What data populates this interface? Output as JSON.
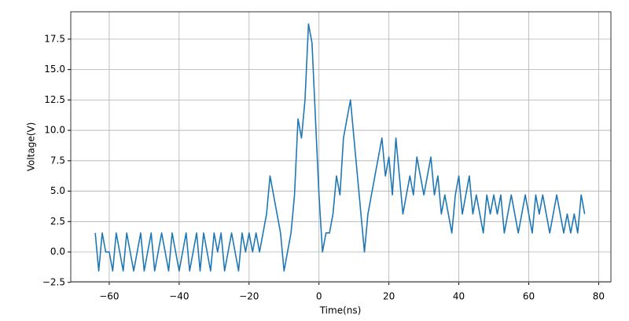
{
  "chart_data": {
    "type": "line",
    "x_label": "Time(ns)",
    "y_label": "Voltage(V)",
    "x": [
      -64,
      -63,
      -62,
      -61,
      -60,
      -59,
      -58,
      -57,
      -56,
      -55,
      -54,
      -53,
      -52,
      -51,
      -50,
      -49,
      -48,
      -47,
      -46,
      -45,
      -44,
      -43,
      -42,
      -41,
      -40,
      -39,
      -38,
      -37,
      -36,
      -35,
      -34,
      -33,
      -32,
      -31,
      -30,
      -29,
      -28,
      -27,
      -26,
      -25,
      -24,
      -23,
      -22,
      -21,
      -20,
      -19,
      -18,
      -17,
      -16,
      -15,
      -14,
      -13,
      -12,
      -11,
      -10,
      -9,
      -8,
      -7,
      -6,
      -5,
      -4,
      -3,
      -2,
      -1,
      0,
      1,
      2,
      3,
      4,
      5,
      6,
      7,
      8,
      9,
      10,
      11,
      12,
      13,
      14,
      15,
      16,
      17,
      18,
      19,
      20,
      21,
      22,
      23,
      24,
      25,
      26,
      27,
      28,
      29,
      30,
      31,
      32,
      33,
      34,
      35,
      36,
      37,
      38,
      39,
      40,
      41,
      42,
      43,
      44,
      45,
      46,
      47,
      48,
      49,
      50,
      51,
      52,
      53,
      54,
      55,
      56,
      57,
      58,
      59,
      60,
      61,
      62,
      63,
      64,
      65,
      66,
      67,
      68,
      69,
      70,
      71,
      72,
      73,
      74,
      75,
      76
    ],
    "series": [
      {
        "color": "#1f77b4",
        "values": [
          1.56,
          -1.56,
          1.56,
          0,
          0,
          -1.56,
          1.56,
          0,
          -1.56,
          1.56,
          0,
          -1.56,
          0,
          1.56,
          -1.56,
          0,
          1.56,
          -1.56,
          0,
          1.56,
          0,
          -1.56,
          1.56,
          0,
          -1.56,
          0,
          1.56,
          -1.56,
          0,
          1.56,
          -1.56,
          1.56,
          0,
          -1.56,
          1.56,
          0,
          1.56,
          -1.56,
          0,
          1.56,
          0,
          -1.56,
          1.56,
          0,
          1.56,
          0,
          1.56,
          0,
          1.56,
          3.12,
          6.25,
          4.69,
          3.12,
          1.56,
          -1.56,
          0,
          1.56,
          4.69,
          10.94,
          9.37,
          12.5,
          18.75,
          17.19,
          10.94,
          4.69,
          0,
          1.56,
          1.56,
          3.12,
          6.25,
          4.69,
          9.37,
          10.94,
          12.5,
          9.37,
          6.25,
          3.12,
          0,
          3.12,
          4.69,
          6.25,
          7.81,
          9.37,
          6.25,
          7.81,
          4.69,
          9.37,
          6.25,
          3.12,
          4.69,
          6.25,
          4.69,
          7.81,
          6.25,
          4.69,
          6.25,
          7.81,
          4.69,
          6.25,
          3.12,
          4.69,
          3.12,
          1.56,
          4.69,
          6.25,
          3.12,
          4.69,
          6.25,
          3.12,
          4.69,
          3.12,
          1.56,
          4.69,
          3.12,
          4.69,
          3.12,
          4.69,
          1.56,
          3.12,
          4.69,
          3.12,
          1.56,
          3.12,
          4.69,
          3.12,
          1.56,
          4.69,
          3.12,
          4.69,
          3.12,
          1.56,
          3.12,
          4.69,
          3.12,
          1.56,
          3.12,
          1.56,
          3.12,
          1.56,
          4.69,
          3.12
        ]
      }
    ],
    "xlim": [
      -71,
      83.5
    ],
    "ylim": [
      -2.45,
      19.75
    ],
    "xticks": [
      {
        "value": -60,
        "label": "−60"
      },
      {
        "value": -40,
        "label": "−40"
      },
      {
        "value": -20,
        "label": "−20"
      },
      0,
      20,
      40,
      60,
      80
    ],
    "yticks": [
      {
        "value": -2.5,
        "label": "−2.5"
      },
      {
        "value": 0,
        "label": "0.0"
      },
      2.5,
      {
        "value": 5,
        "label": "5.0"
      },
      7.5,
      {
        "value": 10,
        "label": "10.0"
      },
      12.5,
      {
        "value": 15,
        "label": "15.0"
      },
      17.5
    ],
    "grid": true
  }
}
